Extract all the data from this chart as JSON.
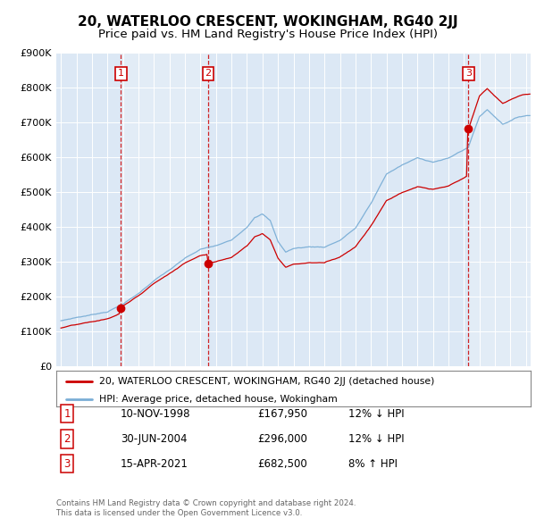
{
  "title": "20, WATERLOO CRESCENT, WOKINGHAM, RG40 2JJ",
  "subtitle": "Price paid vs. HM Land Registry's House Price Index (HPI)",
  "legend_line1": "20, WATERLOO CRESCENT, WOKINGHAM, RG40 2JJ (detached house)",
  "legend_line2": "HPI: Average price, detached house, Wokingham",
  "footnote1": "Contains HM Land Registry data © Crown copyright and database right 2024.",
  "footnote2": "This data is licensed under the Open Government Licence v3.0.",
  "transactions": [
    {
      "num": 1,
      "date": "10-NOV-1998",
      "price": 167950,
      "pct": "12%",
      "dir": "↓",
      "year": 1998.87
    },
    {
      "num": 2,
      "date": "30-JUN-2004",
      "price": 296000,
      "pct": "12%",
      "dir": "↓",
      "year": 2004.5
    },
    {
      "num": 3,
      "date": "15-APR-2021",
      "price": 682500,
      "pct": "8%",
      "dir": "↑",
      "year": 2021.29
    }
  ],
  "hpi_color": "#7aaed6",
  "price_color": "#cc0000",
  "vline_color": "#cc0000",
  "marker_box_color": "#cc0000",
  "shade_color": "#dce8f5",
  "background_chart": "#dce8f5",
  "background_fig": "#ffffff",
  "ylim": [
    0,
    900000
  ],
  "xlim_start": 1994.7,
  "xlim_end": 2025.3
}
